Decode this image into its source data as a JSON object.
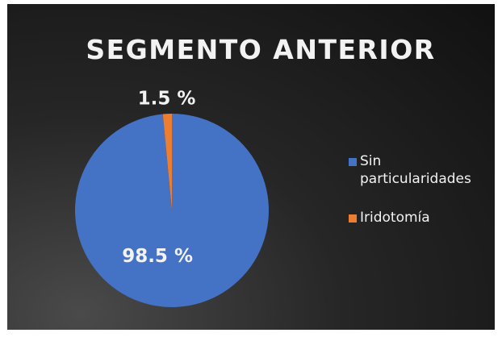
{
  "chart_data": {
    "type": "pie",
    "title": "SEGMENTO ANTERIOR",
    "categories": [
      "Sin particularidades",
      "Iridotomía"
    ],
    "values": [
      98.5,
      1.5
    ],
    "value_labels": [
      "98.5 %",
      "1.5 %"
    ],
    "colors": [
      "#4472c4",
      "#ed7d31"
    ],
    "legend": "right"
  }
}
